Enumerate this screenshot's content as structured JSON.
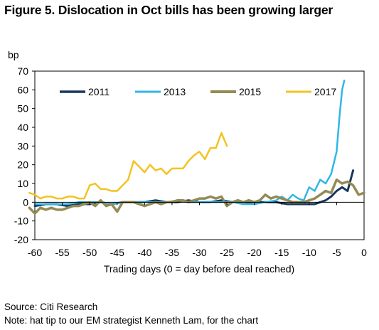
{
  "title": "Figure 5. Dislocation in Oct bills has been growing larger",
  "source": "Source: Citi Research",
  "note": "Note: hat tip to our EM strategist Kenneth Lam, for the chart",
  "chart_data": {
    "type": "line",
    "ylabel": "bp",
    "xlabel": "Trading days (0 = day before deal reached)",
    "xlim": [
      -60,
      0
    ],
    "ylim": [
      -20,
      70
    ],
    "xticks": [
      "-60",
      "-55",
      "-50",
      "-45",
      "-40",
      "-35",
      "-30",
      "-25",
      "-20",
      "-15",
      "-10",
      "-5",
      "0"
    ],
    "yticks": [
      "70",
      "60",
      "50",
      "40",
      "30",
      "20",
      "10",
      "0",
      "-10",
      "-20"
    ],
    "xtick_values": [
      -60,
      -55,
      -50,
      -45,
      -40,
      -35,
      -30,
      -25,
      -20,
      -15,
      -10,
      -5,
      0
    ],
    "ytick_values": [
      70,
      60,
      50,
      40,
      30,
      20,
      10,
      0,
      -10,
      -20
    ],
    "grid": false,
    "legend_position": "top",
    "series": [
      {
        "name": "2011",
        "color": "#17375e",
        "stroke_width": 3,
        "x": [
          -60,
          -58,
          -56,
          -54,
          -52,
          -50,
          -48,
          -46,
          -44,
          -42,
          -40,
          -38,
          -36,
          -34,
          -32,
          -30,
          -28,
          -26,
          -24,
          -22,
          -20,
          -18,
          -16,
          -14,
          -12,
          -10,
          -9,
          -8,
          -7,
          -6,
          -5,
          -4,
          -3,
          -2
        ],
        "y": [
          -2,
          -1,
          -1,
          -2,
          -1,
          -1,
          0,
          -1,
          0,
          0,
          0,
          1,
          0,
          0,
          1,
          0,
          0,
          1,
          0,
          0,
          0,
          0,
          0,
          -1,
          -1,
          -1,
          -1,
          0,
          1,
          3,
          6,
          8,
          6,
          17
        ]
      },
      {
        "name": "2013",
        "color": "#31b6e6",
        "stroke_width": 2.5,
        "x": [
          -60,
          -58,
          -56,
          -54,
          -52,
          -50,
          -48,
          -46,
          -44,
          -42,
          -40,
          -38,
          -36,
          -34,
          -32,
          -30,
          -28,
          -26,
          -24,
          -22,
          -20,
          -18,
          -16,
          -15,
          -14,
          -13,
          -12,
          -11,
          -10,
          -9,
          -8,
          -7,
          -6,
          -5,
          -4.5,
          -4,
          -3.6
        ],
        "y": [
          -1,
          -1,
          -1,
          -1,
          0,
          0,
          0,
          -1,
          0,
          0,
          0,
          0,
          0,
          1,
          0,
          0,
          0,
          0,
          0,
          -1,
          -1,
          0,
          1,
          3,
          1,
          4,
          2,
          1,
          8,
          6,
          12,
          10,
          15,
          27,
          45,
          60,
          65
        ]
      },
      {
        "name": "2015",
        "color": "#948a54",
        "stroke_width": 3.5,
        "x": [
          -61,
          -60,
          -59,
          -58,
          -57,
          -56,
          -55,
          -54,
          -53,
          -52,
          -51,
          -50,
          -49,
          -48,
          -47,
          -46,
          -45,
          -44,
          -43,
          -42,
          -41,
          -40,
          -39,
          -38,
          -37,
          -36,
          -35,
          -34,
          -33,
          -32,
          -31,
          -30,
          -29,
          -28,
          -27,
          -26,
          -25,
          -24,
          -23,
          -22,
          -21,
          -20,
          -19,
          -18,
          -17,
          -16,
          -15,
          -14,
          -13,
          -12,
          -11,
          -10,
          -9,
          -8,
          -7,
          -6,
          -5,
          -4,
          -3,
          -2,
          -1,
          0
        ],
        "y": [
          -3,
          -6,
          -3,
          -4,
          -3,
          -4,
          -4,
          -3,
          -2,
          -2,
          -1,
          0,
          -2,
          1,
          -2,
          -1,
          -5,
          0,
          0,
          0,
          -1,
          -2,
          -1,
          0,
          -1,
          0,
          0,
          1,
          1,
          0,
          1,
          2,
          2,
          3,
          2,
          3,
          -2,
          0,
          1,
          0,
          1,
          0,
          1,
          4,
          2,
          3,
          2,
          1,
          0,
          0,
          0,
          1,
          2,
          4,
          6,
          5,
          12,
          10,
          11,
          9,
          4,
          5
        ]
      },
      {
        "name": "2017",
        "color": "#f3c321",
        "stroke_width": 2.5,
        "x": [
          -61,
          -60,
          -59,
          -58,
          -57,
          -56,
          -55,
          -54,
          -53,
          -52,
          -51,
          -50,
          -49,
          -48,
          -47,
          -46,
          -45,
          -44,
          -43,
          -42,
          -41,
          -40,
          -39,
          -38,
          -37,
          -36,
          -35,
          -34,
          -33,
          -32,
          -31,
          -30,
          -29,
          -28,
          -27,
          -26,
          -25
        ],
        "y": [
          5,
          4,
          2,
          3,
          3,
          2,
          2,
          3,
          3,
          2,
          2,
          9,
          10,
          7,
          7,
          6,
          6,
          9,
          12,
          22,
          19,
          16,
          20,
          17,
          18,
          15,
          18,
          18,
          18,
          22,
          25,
          27,
          23,
          29,
          29,
          37,
          30
        ]
      }
    ]
  }
}
